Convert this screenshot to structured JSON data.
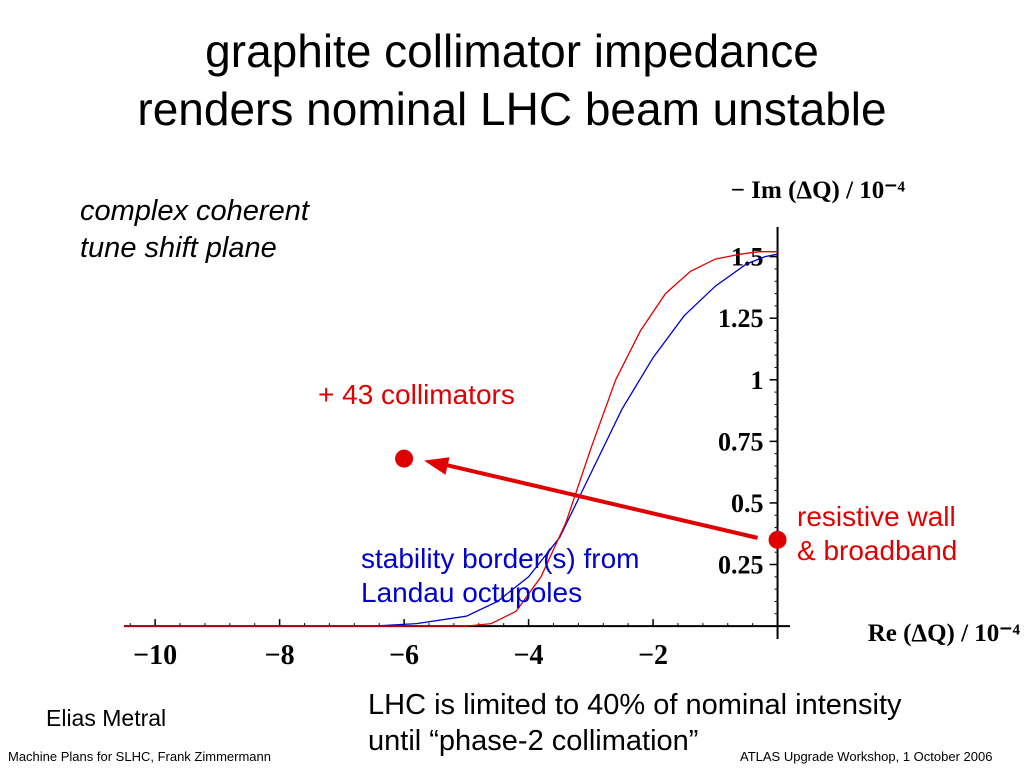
{
  "slide": {
    "title_lines": [
      "graphite collimator impedance",
      "renders nominal LHC beam unstable"
    ],
    "subtitle_lines": [
      "complex coherent",
      "tune shift plane"
    ],
    "annotations": {
      "collimators": "+ 43 collimators",
      "resistive_lines": [
        "resistive wall",
        "& broadband"
      ],
      "stability_lines": [
        "stability border(s) from",
        "Landau octupoles"
      ]
    },
    "author": "Elias Metral",
    "note_lines": [
      "LHC is limited to 40% of nominal intensity",
      "until “phase-2 collimation”"
    ],
    "footer_left": "Machine Plans for SLHC, Frank Zimmermann",
    "footer_right": "ATLAS Upgrade Workshop, 1 October 2006",
    "colors": {
      "red": "#e00000",
      "blue": "#0000cc",
      "axis": "#000000"
    }
  },
  "chart_data": {
    "type": "line",
    "xlabel": "Re (ΔQ) / 10⁻⁴",
    "ylabel": "− Im (ΔQ) / 10⁻⁴",
    "xlim": [
      -10.5,
      0.2
    ],
    "ylim": [
      -0.02,
      1.6
    ],
    "x_ticks": [
      -10,
      -8,
      -6,
      -4,
      -2
    ],
    "x_tick_labels": [
      "−10",
      "−8",
      "−6",
      "−4",
      "−2"
    ],
    "y_ticks": [
      0.25,
      0.5,
      0.75,
      1,
      1.25,
      1.5
    ],
    "y_tick_labels": [
      "0.25",
      "0.5",
      "0.75",
      "1",
      "1.25",
      "1.5"
    ],
    "series": [
      {
        "color": "#0000cc",
        "x": [
          -10.5,
          -6.5,
          -5.8,
          -5.0,
          -4.5,
          -4.0,
          -3.5,
          -3.0,
          -2.5,
          -2.0,
          -1.5,
          -1.0,
          -0.5,
          -0.2,
          0.0
        ],
        "y": [
          0.0,
          0.0,
          0.01,
          0.04,
          0.1,
          0.2,
          0.36,
          0.62,
          0.88,
          1.09,
          1.26,
          1.38,
          1.47,
          1.5,
          1.51
        ]
      },
      {
        "color": "#e00000",
        "x": [
          -10.5,
          -5.0,
          -4.6,
          -4.2,
          -3.8,
          -3.4,
          -3.0,
          -2.6,
          -2.2,
          -1.8,
          -1.4,
          -1.0,
          -0.6,
          -0.3,
          0.0
        ],
        "y": [
          0.0,
          0.0,
          0.01,
          0.06,
          0.2,
          0.42,
          0.72,
          1.0,
          1.2,
          1.35,
          1.44,
          1.49,
          1.51,
          1.52,
          1.52
        ]
      }
    ],
    "points": [
      {
        "label": "resistive wall & broadband",
        "x": 0.0,
        "y": 0.35,
        "color": "#e00000"
      },
      {
        "label": "+ 43 collimators",
        "x": -6.0,
        "y": 0.68,
        "color": "#e00000"
      }
    ]
  }
}
